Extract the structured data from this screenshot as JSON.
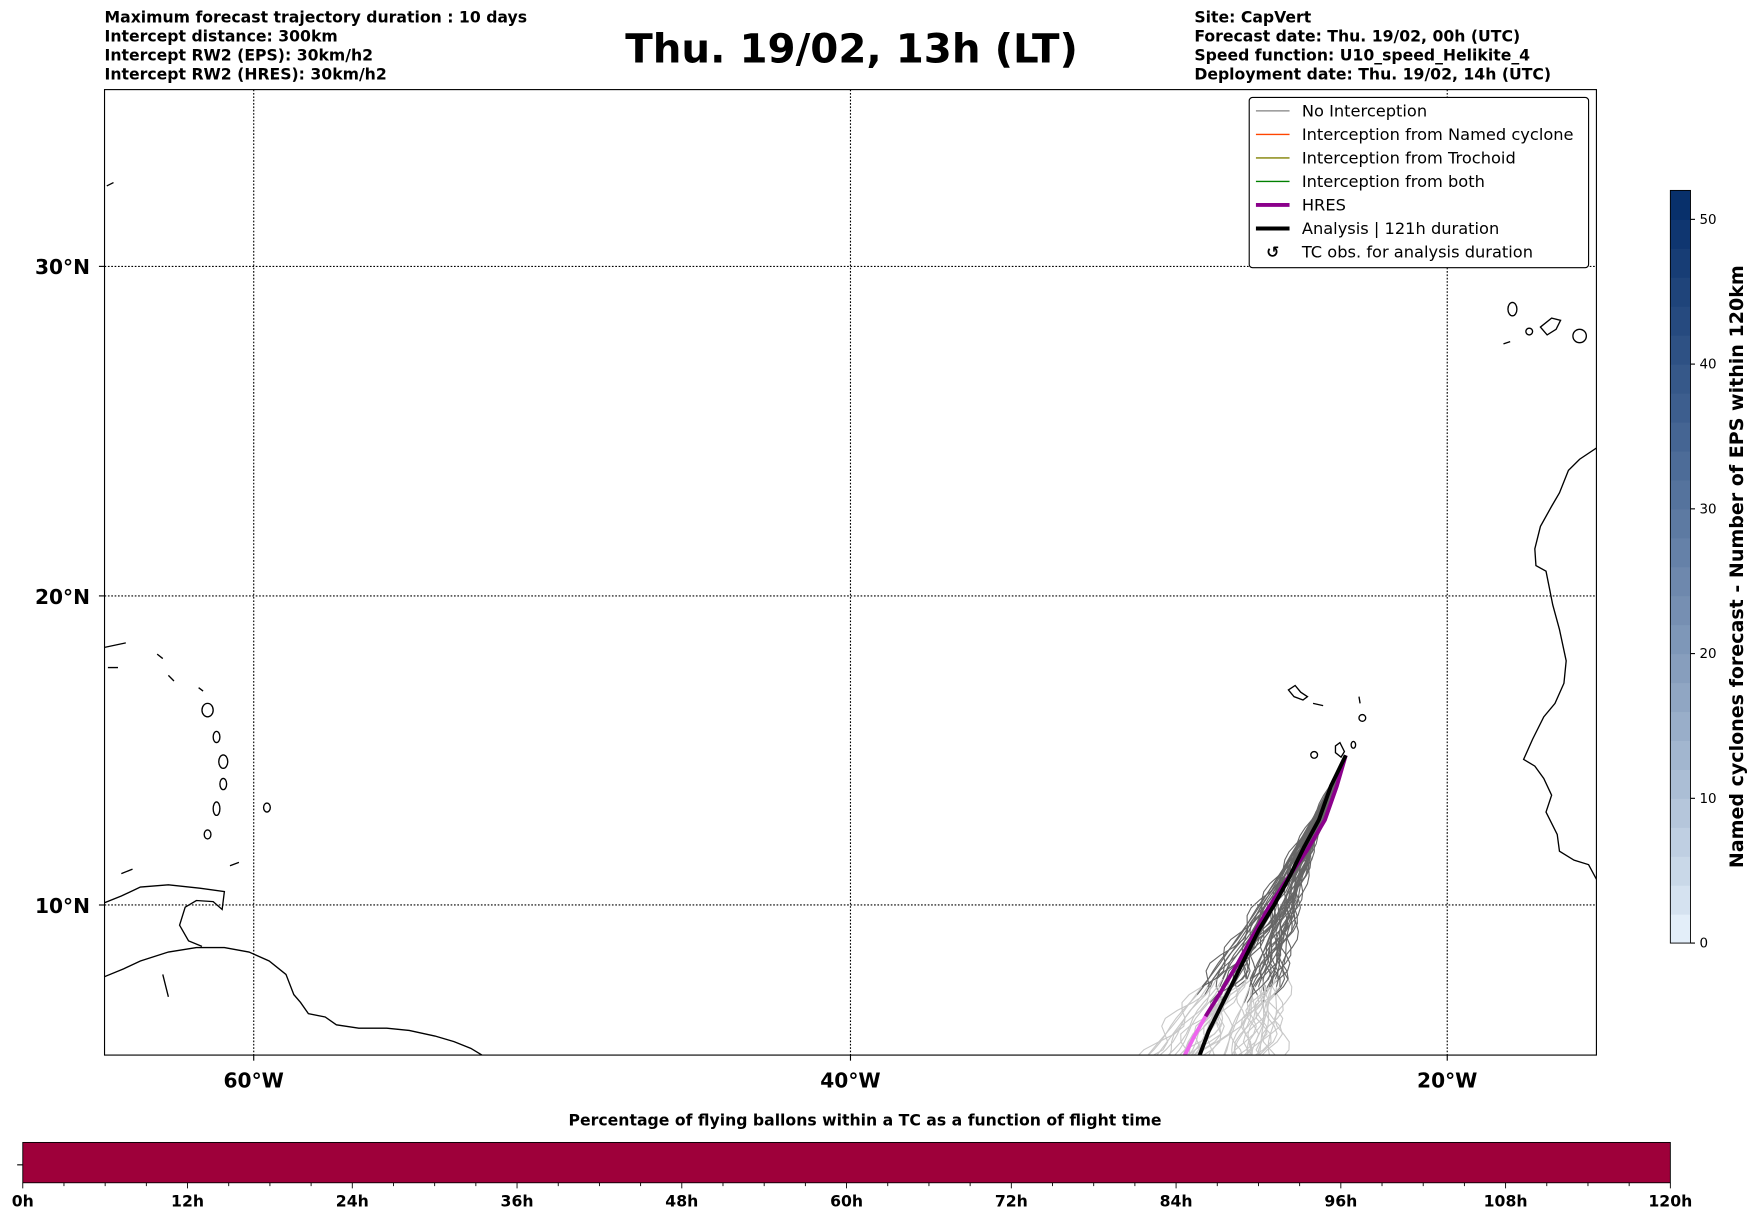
{
  "header": {
    "left_lines": [
      "Maximum forecast trajectory duration : 10 days",
      "Intercept distance: 300km",
      "Intercept RW2 (EPS):  30km/h2",
      "Intercept RW2 (HRES): 30km/h2"
    ],
    "title": "Thu. 19/02, 13h (LT)",
    "right_lines": [
      "Site: CapVert",
      "Forecast date: Thu. 19/02, 00h (UTC)",
      "Speed function: U10_speed_Helikite_4",
      "Deployment date: Thu. 19/02, 14h (UTC)"
    ]
  },
  "map": {
    "lon_range": [
      -65,
      -15
    ],
    "lat_range": [
      5,
      35.5
    ],
    "lon_ticks": [
      {
        "value": -60,
        "label": "60°W"
      },
      {
        "value": -40,
        "label": "40°W"
      },
      {
        "value": -20,
        "label": "20°W"
      }
    ],
    "lat_ticks": [
      {
        "value": 30,
        "label": "30°N"
      },
      {
        "value": 20,
        "label": "20°N"
      },
      {
        "value": 10,
        "label": "10°N"
      }
    ],
    "launch_site": {
      "lon": -23.4,
      "lat": 14.9
    },
    "analysis_track": [
      [
        -23.4,
        14.9
      ],
      [
        -23.9,
        13.9
      ],
      [
        -24.3,
        12.8
      ],
      [
        -24.8,
        11.9
      ],
      [
        -25.3,
        10.9
      ],
      [
        -25.8,
        10.0
      ],
      [
        -26.3,
        9.2
      ],
      [
        -26.7,
        8.4
      ],
      [
        -27.1,
        7.6
      ],
      [
        -27.6,
        6.6
      ],
      [
        -28.0,
        5.8
      ],
      [
        -28.3,
        5.0
      ]
    ],
    "hres_track": [
      [
        -23.4,
        14.9
      ],
      [
        -23.7,
        13.9
      ],
      [
        -24.1,
        12.8
      ],
      [
        -24.7,
        11.8
      ],
      [
        -25.4,
        10.8
      ],
      [
        -26.0,
        9.9
      ],
      [
        -26.5,
        9.0
      ],
      [
        -27.0,
        8.1
      ],
      [
        -27.6,
        7.1
      ],
      [
        -28.1,
        6.3
      ],
      [
        -28.5,
        5.6
      ],
      [
        -28.8,
        5.0
      ]
    ],
    "ensemble_members": 50
  },
  "legend": {
    "items": [
      {
        "label": "No Interception",
        "color": "#808080",
        "kind": "thin"
      },
      {
        "label": "Interception from Named cyclone",
        "color": "#ff4500",
        "kind": "thin"
      },
      {
        "label": "Interception from Trochoid",
        "color": "#808000",
        "kind": "thin"
      },
      {
        "label": "Interception from both",
        "color": "#008000",
        "kind": "thin"
      },
      {
        "label": "HRES",
        "color": "#8b008b",
        "kind": "thick"
      },
      {
        "label": "Analysis | 121h duration",
        "color": "#000000",
        "kind": "thick"
      },
      {
        "label": "TC obs. for analysis duration",
        "color": "#000000",
        "kind": "marker"
      }
    ]
  },
  "colorbar": {
    "label": "Named cyclones forecast - Number of EPS within 120km",
    "min": 0,
    "max": 52,
    "ticks": [
      "0",
      "10",
      "20",
      "30",
      "40",
      "50"
    ],
    "color_low": "#e3eef9",
    "color_high": "#08306b"
  },
  "bottom_bar": {
    "title": "Percentage of flying ballons within a TC as a function of flight time",
    "color": "#9e003a",
    "ticks": [
      "0h",
      "12h",
      "24h",
      "36h",
      "48h",
      "60h",
      "72h",
      "84h",
      "96h",
      "108h",
      "120h"
    ]
  }
}
